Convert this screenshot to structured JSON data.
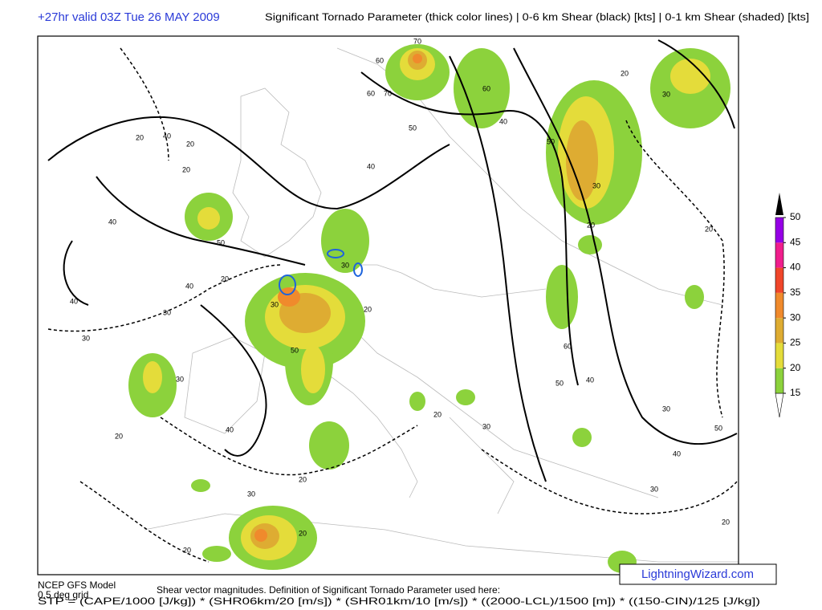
{
  "header": {
    "valid_time": "+27hr valid 03Z Tue 26 MAY 2009",
    "description": "Significant Tornado Parameter (thick color lines) | 0-6 km Shear (black) [kts] | 0-1 km Shear (shaded) [kts]"
  },
  "legend": {
    "levels": [
      15,
      20,
      25,
      30,
      35,
      40,
      45,
      50
    ],
    "colors": [
      "#8cd23c",
      "#e4dc3a",
      "#deac32",
      "#f08a2c",
      "#f0462a",
      "#f01e8c",
      "#9600e6"
    ]
  },
  "contour_labels": [
    "70",
    "60",
    "60",
    "70",
    "50",
    "60",
    "40",
    "40",
    "50",
    "30",
    "20",
    "20",
    "30",
    "40",
    "20",
    "20",
    "20",
    "40",
    "50",
    "20",
    "40",
    "30",
    "40",
    "30",
    "30",
    "30",
    "20",
    "50",
    "30",
    "20",
    "40",
    "30",
    "20",
    "20",
    "30",
    "60",
    "50",
    "40",
    "30",
    "50",
    "40",
    "30",
    "20",
    "20",
    "20",
    "20"
  ],
  "footer": {
    "model": "NCEP GFS Model",
    "grid": "0.5 deg grid",
    "definition_title": "Shear vector magnitudes. Definition of Significant Tornado Parameter used here:",
    "formula": "STP = (CAPE/1000 [J/kg]) * (SHR06km/20 [m/s]) * (SHR01km/10 [m/s]) * ((2000-LCL)/1500 [m]) * ((150-CIN)/125 [J/kg])"
  },
  "watermark": "LightningWizard.com"
}
